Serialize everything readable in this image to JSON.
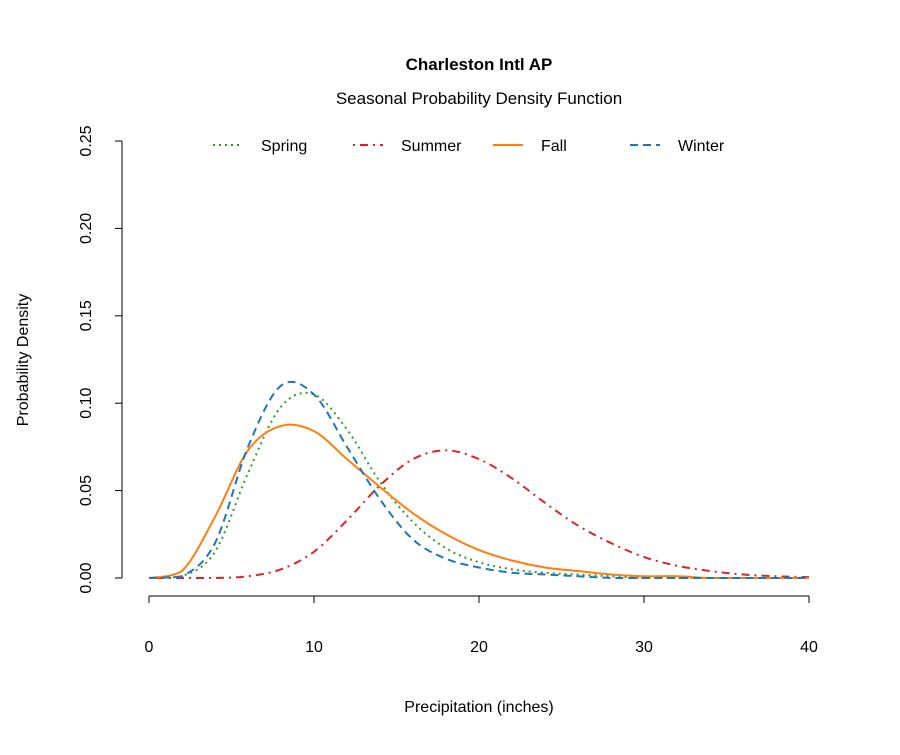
{
  "chart_data": {
    "type": "line",
    "title": "Charleston Intl AP",
    "subtitle": "Seasonal Probability Density Function",
    "xlabel": "Precipitation (inches)",
    "ylabel": "Probability Density",
    "xlim": [
      0,
      40
    ],
    "ylim": [
      0,
      0.25
    ],
    "xticks": [
      "0",
      "10",
      "20",
      "30",
      "40"
    ],
    "yticks": [
      "0.00",
      "0.05",
      "0.10",
      "0.15",
      "0.20",
      "0.25"
    ],
    "grid": false,
    "legend_placement": "top",
    "x": [
      0,
      2,
      4,
      6,
      8,
      10,
      12,
      14,
      16,
      18,
      20,
      22,
      24,
      26,
      28,
      30,
      32,
      34,
      36,
      38,
      40
    ],
    "series": [
      {
        "name": "Spring",
        "color": "#2ca02c",
        "style": "dotted",
        "values": [
          0,
          0.001,
          0.015,
          0.06,
          0.098,
          0.105,
          0.085,
          0.055,
          0.032,
          0.017,
          0.009,
          0.005,
          0.003,
          0.002,
          0.001,
          0,
          0,
          0,
          0,
          0,
          0
        ]
      },
      {
        "name": "Summer",
        "color": "#d62728",
        "style": "dotdash",
        "values": [
          0,
          0,
          0,
          0.001,
          0.005,
          0.015,
          0.033,
          0.053,
          0.068,
          0.073,
          0.068,
          0.057,
          0.043,
          0.03,
          0.02,
          0.012,
          0.007,
          0.004,
          0.002,
          0.001,
          0.0005
        ]
      },
      {
        "name": "Fall",
        "color": "#ff7f0e",
        "style": "solid",
        "values": [
          0,
          0.004,
          0.035,
          0.073,
          0.087,
          0.084,
          0.068,
          0.052,
          0.037,
          0.025,
          0.016,
          0.01,
          0.006,
          0.004,
          0.002,
          0.001,
          0.001,
          0,
          0,
          0,
          0
        ]
      },
      {
        "name": "Winter",
        "color": "#1f77b4",
        "style": "dashed",
        "values": [
          0,
          0.001,
          0.02,
          0.075,
          0.11,
          0.105,
          0.075,
          0.045,
          0.022,
          0.011,
          0.006,
          0.003,
          0.002,
          0.001,
          0,
          0,
          0,
          0,
          0,
          0,
          0
        ]
      }
    ]
  }
}
